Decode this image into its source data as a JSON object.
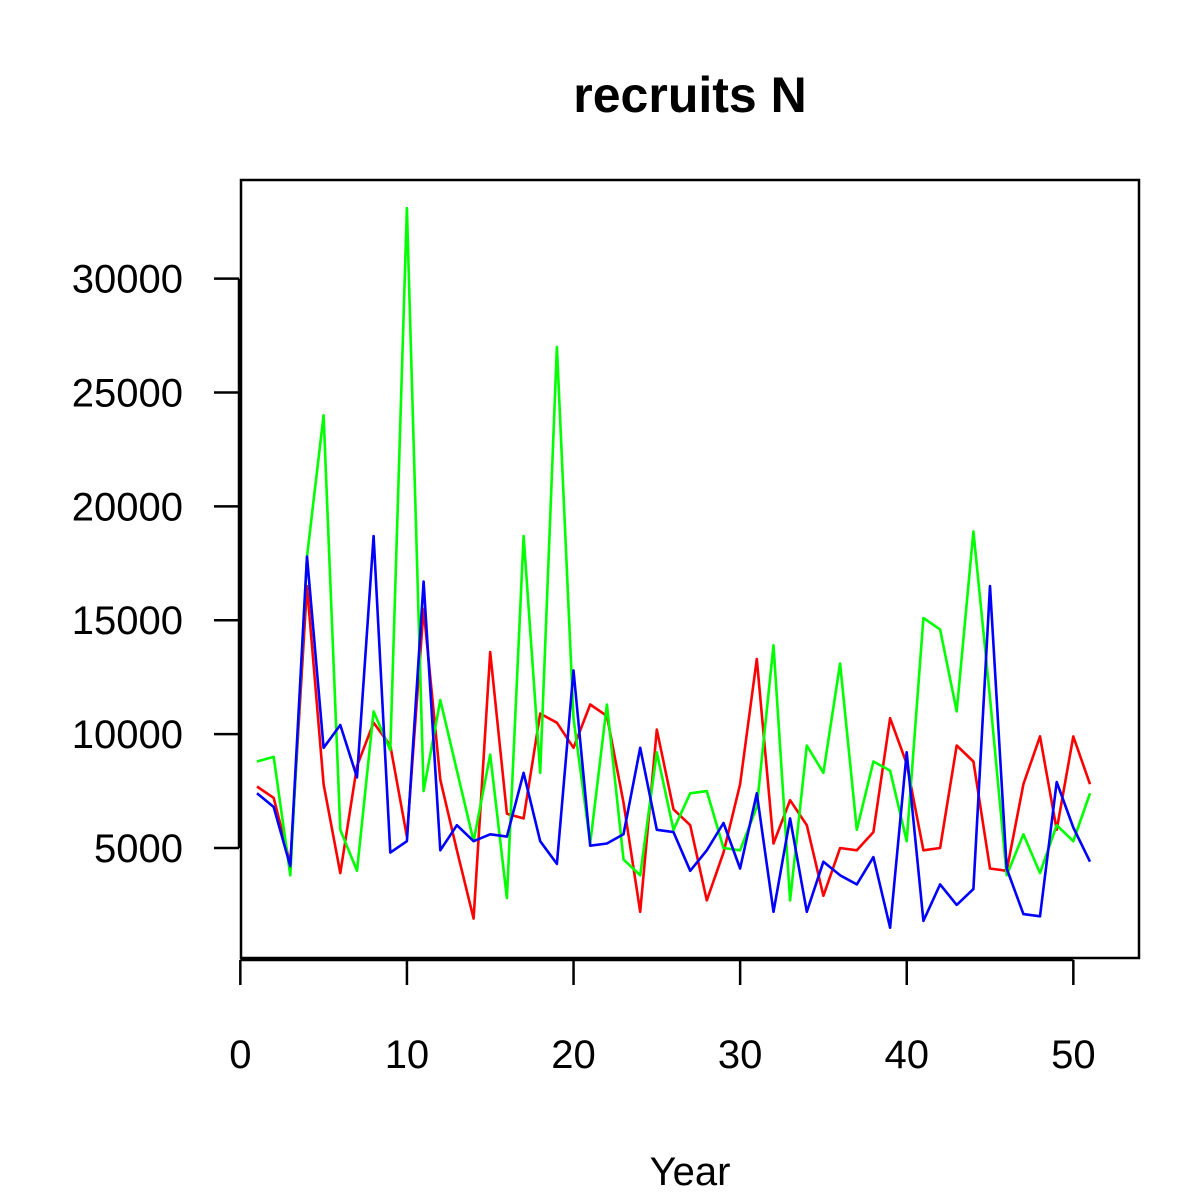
{
  "chart_data": {
    "type": "line",
    "title": "recruits N",
    "xlabel": "Year",
    "ylabel": "",
    "xlim": [
      1,
      51
    ],
    "ylim": [
      1400,
      33100
    ],
    "x_ticks": [
      0,
      10,
      20,
      30,
      40,
      50
    ],
    "y_ticks": [
      5000,
      10000,
      15000,
      20000,
      25000,
      30000
    ],
    "grid": false,
    "x": [
      1,
      2,
      3,
      4,
      5,
      6,
      7,
      8,
      9,
      10,
      11,
      12,
      13,
      14,
      15,
      16,
      17,
      18,
      19,
      20,
      21,
      22,
      23,
      24,
      25,
      26,
      27,
      28,
      29,
      30,
      31,
      32,
      33,
      34,
      35,
      36,
      37,
      38,
      39,
      40,
      41,
      42,
      43,
      44,
      45,
      46,
      47,
      48,
      49,
      50,
      51
    ],
    "series": [
      {
        "color": "#ff0000",
        "values": [
          7700,
          7200,
          4300,
          16500,
          7800,
          3900,
          8600,
          10500,
          9500,
          5500,
          15500,
          8000,
          4900,
          1900,
          13600,
          6500,
          6300,
          10900,
          10500,
          9400,
          11300,
          10800,
          7000,
          2200,
          10200,
          6700,
          6000,
          2700,
          4800,
          7800,
          13300,
          5200,
          7100,
          6000,
          2900,
          5000,
          4900,
          5700,
          10700,
          8700,
          4900,
          5000,
          9500,
          8800,
          4100,
          4000,
          7800,
          9900,
          5800,
          9900,
          7800
        ]
      },
      {
        "color": "#00ff00",
        "values": [
          8800,
          9000,
          3800,
          17800,
          24000,
          5800,
          4000,
          11000,
          9300,
          33100,
          7500,
          11500,
          8400,
          5300,
          9100,
          2800,
          18700,
          8300,
          27000,
          10700,
          5200,
          11300,
          4500,
          3800,
          9200,
          5800,
          7400,
          7500,
          5000,
          4900,
          6800,
          13900,
          2700,
          9500,
          8300,
          13100,
          5800,
          8800,
          8400,
          5300,
          15100,
          14600,
          11000,
          18900,
          11600,
          3800,
          5600,
          3900,
          6000,
          5300,
          7400
        ]
      },
      {
        "color": "#0000ff",
        "values": [
          7400,
          6800,
          4200,
          17800,
          9400,
          10400,
          8100,
          18700,
          4800,
          5300,
          16700,
          4900,
          6000,
          5300,
          5600,
          5500,
          8300,
          5300,
          4300,
          12800,
          5100,
          5200,
          5600,
          9400,
          5800,
          5700,
          4000,
          4900,
          6100,
          4100,
          7400,
          2200,
          6300,
          2200,
          4400,
          3800,
          3400,
          4600,
          1500,
          9200,
          1800,
          3400,
          2500,
          3200,
          16500,
          4100,
          2100,
          2000,
          7900,
          5900,
          4400
        ]
      }
    ]
  }
}
